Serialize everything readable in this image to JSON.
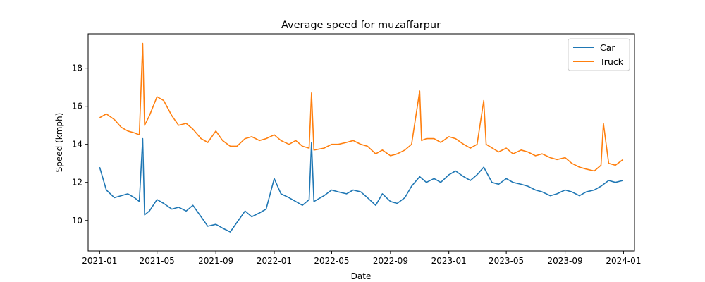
{
  "chart_data": {
    "type": "line",
    "title": "Average speed for muzaffarpur",
    "xlabel": "Date",
    "ylabel": "Speed (kmph)",
    "x_range": [
      "2020-12-08",
      "2024-01-24"
    ],
    "ylim": [
      8.4,
      19.8
    ],
    "x_ticks": [
      "2021-01",
      "2021-05",
      "2021-09",
      "2022-01",
      "2022-05",
      "2022-09",
      "2023-01",
      "2023-05",
      "2023-09",
      "2024-01"
    ],
    "y_ticks": [
      10,
      12,
      14,
      16,
      18
    ],
    "grid": false,
    "legend": {
      "position": "upper right"
    },
    "series": [
      {
        "name": "Car",
        "color": "#1f77b4",
        "points": [
          [
            "2021-01-01",
            12.8
          ],
          [
            "2021-01-15",
            11.6
          ],
          [
            "2021-02-01",
            11.2
          ],
          [
            "2021-02-15",
            11.3
          ],
          [
            "2021-03-01",
            11.4
          ],
          [
            "2021-03-15",
            11.2
          ],
          [
            "2021-03-25",
            11.0
          ],
          [
            "2021-04-01",
            14.3
          ],
          [
            "2021-04-05",
            10.3
          ],
          [
            "2021-04-15",
            10.5
          ],
          [
            "2021-05-01",
            11.1
          ],
          [
            "2021-05-15",
            10.9
          ],
          [
            "2021-06-01",
            10.6
          ],
          [
            "2021-06-15",
            10.7
          ],
          [
            "2021-07-01",
            10.5
          ],
          [
            "2021-07-15",
            10.8
          ],
          [
            "2021-08-01",
            10.2
          ],
          [
            "2021-08-15",
            9.7
          ],
          [
            "2021-09-01",
            9.8
          ],
          [
            "2021-09-15",
            9.6
          ],
          [
            "2021-10-01",
            9.4
          ],
          [
            "2021-10-15",
            9.9
          ],
          [
            "2021-11-01",
            10.5
          ],
          [
            "2021-11-15",
            10.2
          ],
          [
            "2021-12-01",
            10.4
          ],
          [
            "2021-12-15",
            10.6
          ],
          [
            "2022-01-01",
            12.2
          ],
          [
            "2022-01-15",
            11.4
          ],
          [
            "2022-02-01",
            11.2
          ],
          [
            "2022-02-15",
            11.0
          ],
          [
            "2022-03-01",
            10.8
          ],
          [
            "2022-03-15",
            11.1
          ],
          [
            "2022-03-20",
            14.1
          ],
          [
            "2022-03-25",
            11.0
          ],
          [
            "2022-04-15",
            11.3
          ],
          [
            "2022-05-01",
            11.6
          ],
          [
            "2022-05-15",
            11.5
          ],
          [
            "2022-06-01",
            11.4
          ],
          [
            "2022-06-15",
            11.6
          ],
          [
            "2022-07-01",
            11.5
          ],
          [
            "2022-07-15",
            11.2
          ],
          [
            "2022-08-01",
            10.8
          ],
          [
            "2022-08-15",
            11.4
          ],
          [
            "2022-09-01",
            11.0
          ],
          [
            "2022-09-15",
            10.9
          ],
          [
            "2022-10-01",
            11.2
          ],
          [
            "2022-10-15",
            11.8
          ],
          [
            "2022-11-01",
            12.3
          ],
          [
            "2022-11-15",
            12.0
          ],
          [
            "2022-12-01",
            12.2
          ],
          [
            "2022-12-15",
            12.0
          ],
          [
            "2023-01-01",
            12.4
          ],
          [
            "2023-01-15",
            12.6
          ],
          [
            "2023-02-01",
            12.3
          ],
          [
            "2023-02-15",
            12.1
          ],
          [
            "2023-03-01",
            12.4
          ],
          [
            "2023-03-15",
            12.8
          ],
          [
            "2023-04-01",
            12.0
          ],
          [
            "2023-04-15",
            11.9
          ],
          [
            "2023-05-01",
            12.2
          ],
          [
            "2023-05-15",
            12.0
          ],
          [
            "2023-06-01",
            11.9
          ],
          [
            "2023-06-15",
            11.8
          ],
          [
            "2023-07-01",
            11.6
          ],
          [
            "2023-07-15",
            11.5
          ],
          [
            "2023-08-01",
            11.3
          ],
          [
            "2023-08-15",
            11.4
          ],
          [
            "2023-09-01",
            11.6
          ],
          [
            "2023-09-15",
            11.5
          ],
          [
            "2023-10-01",
            11.3
          ],
          [
            "2023-10-15",
            11.5
          ],
          [
            "2023-11-01",
            11.6
          ],
          [
            "2023-11-15",
            11.8
          ],
          [
            "2023-12-01",
            12.1
          ],
          [
            "2023-12-15",
            12.0
          ],
          [
            "2023-12-31",
            12.1
          ]
        ]
      },
      {
        "name": "Truck",
        "color": "#ff7f0e",
        "points": [
          [
            "2021-01-01",
            15.4
          ],
          [
            "2021-01-15",
            15.6
          ],
          [
            "2021-02-01",
            15.3
          ],
          [
            "2021-02-15",
            14.9
          ],
          [
            "2021-03-01",
            14.7
          ],
          [
            "2021-03-15",
            14.6
          ],
          [
            "2021-03-25",
            14.5
          ],
          [
            "2021-04-01",
            19.3
          ],
          [
            "2021-04-05",
            15.0
          ],
          [
            "2021-04-15",
            15.5
          ],
          [
            "2021-05-01",
            16.5
          ],
          [
            "2021-05-15",
            16.3
          ],
          [
            "2021-06-01",
            15.5
          ],
          [
            "2021-06-15",
            15.0
          ],
          [
            "2021-07-01",
            15.1
          ],
          [
            "2021-07-15",
            14.8
          ],
          [
            "2021-08-01",
            14.3
          ],
          [
            "2021-08-15",
            14.1
          ],
          [
            "2021-09-01",
            14.7
          ],
          [
            "2021-09-15",
            14.2
          ],
          [
            "2021-10-01",
            13.9
          ],
          [
            "2021-10-15",
            13.9
          ],
          [
            "2021-11-01",
            14.3
          ],
          [
            "2021-11-15",
            14.4
          ],
          [
            "2021-12-01",
            14.2
          ],
          [
            "2021-12-15",
            14.3
          ],
          [
            "2022-01-01",
            14.5
          ],
          [
            "2022-01-15",
            14.2
          ],
          [
            "2022-02-01",
            14.0
          ],
          [
            "2022-02-15",
            14.2
          ],
          [
            "2022-03-01",
            13.9
          ],
          [
            "2022-03-15",
            13.8
          ],
          [
            "2022-03-20",
            16.7
          ],
          [
            "2022-03-25",
            13.7
          ],
          [
            "2022-04-15",
            13.8
          ],
          [
            "2022-05-01",
            14.0
          ],
          [
            "2022-05-15",
            14.0
          ],
          [
            "2022-06-01",
            14.1
          ],
          [
            "2022-06-15",
            14.2
          ],
          [
            "2022-07-01",
            14.0
          ],
          [
            "2022-07-15",
            13.9
          ],
          [
            "2022-08-01",
            13.5
          ],
          [
            "2022-08-15",
            13.7
          ],
          [
            "2022-09-01",
            13.4
          ],
          [
            "2022-09-15",
            13.5
          ],
          [
            "2022-10-01",
            13.7
          ],
          [
            "2022-10-15",
            14.0
          ],
          [
            "2022-11-01",
            16.8
          ],
          [
            "2022-11-05",
            14.2
          ],
          [
            "2022-11-15",
            14.3
          ],
          [
            "2022-12-01",
            14.3
          ],
          [
            "2022-12-15",
            14.1
          ],
          [
            "2023-01-01",
            14.4
          ],
          [
            "2023-01-15",
            14.3
          ],
          [
            "2023-02-01",
            14.0
          ],
          [
            "2023-02-15",
            13.8
          ],
          [
            "2023-03-01",
            14.0
          ],
          [
            "2023-03-15",
            16.3
          ],
          [
            "2023-03-20",
            14.0
          ],
          [
            "2023-04-15",
            13.6
          ],
          [
            "2023-05-01",
            13.8
          ],
          [
            "2023-05-15",
            13.5
          ],
          [
            "2023-06-01",
            13.7
          ],
          [
            "2023-06-15",
            13.6
          ],
          [
            "2023-07-01",
            13.4
          ],
          [
            "2023-07-15",
            13.5
          ],
          [
            "2023-08-01",
            13.3
          ],
          [
            "2023-08-15",
            13.2
          ],
          [
            "2023-09-01",
            13.3
          ],
          [
            "2023-09-15",
            13.0
          ],
          [
            "2023-10-01",
            12.8
          ],
          [
            "2023-10-15",
            12.7
          ],
          [
            "2023-11-01",
            12.6
          ],
          [
            "2023-11-15",
            12.9
          ],
          [
            "2023-11-20",
            15.1
          ],
          [
            "2023-12-01",
            13.0
          ],
          [
            "2023-12-15",
            12.9
          ],
          [
            "2023-12-31",
            13.2
          ]
        ]
      }
    ]
  }
}
